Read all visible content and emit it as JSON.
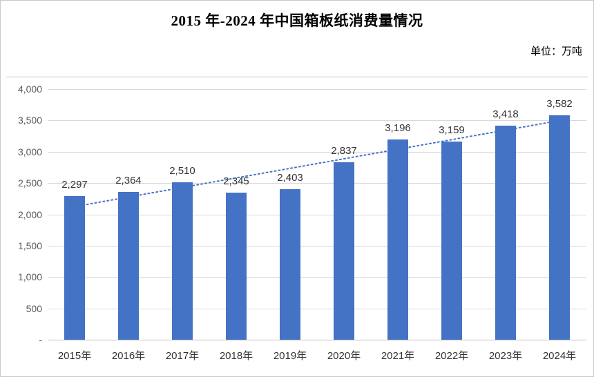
{
  "page": {
    "title": "2015 年-2024 年中国箱板纸消费量情况",
    "unit_label": "单位：万吨"
  },
  "chart_data": {
    "type": "bar",
    "title": "2015 年-2024 年中国箱板纸消费量情况",
    "unit": "万吨",
    "categories": [
      "2015年",
      "2016年",
      "2017年",
      "2018年",
      "2019年",
      "2020年",
      "2021年",
      "2022年",
      "2023年",
      "2024年"
    ],
    "values": [
      2297,
      2364,
      2510,
      2345,
      2403,
      2837,
      3196,
      3159,
      3418,
      3582
    ],
    "value_labels": [
      "2,297",
      "2,364",
      "2,510",
      "2,345",
      "2,403",
      "2,837",
      "3,196",
      "3,159",
      "3,418",
      "3,582"
    ],
    "ylim": [
      0,
      4000
    ],
    "yticks": [
      0,
      500,
      1000,
      1500,
      2000,
      2500,
      3000,
      3500,
      4000
    ],
    "ytick_labels": [
      "-",
      "500",
      "1,000",
      "1,500",
      "2,000",
      "2,500",
      "3,000",
      "3,500",
      "4,000"
    ],
    "grid": true,
    "legend": "none",
    "bar_color": "#4472C4",
    "trendline": {
      "type": "linear",
      "style": "dotted",
      "color": "#4472C4"
    }
  }
}
